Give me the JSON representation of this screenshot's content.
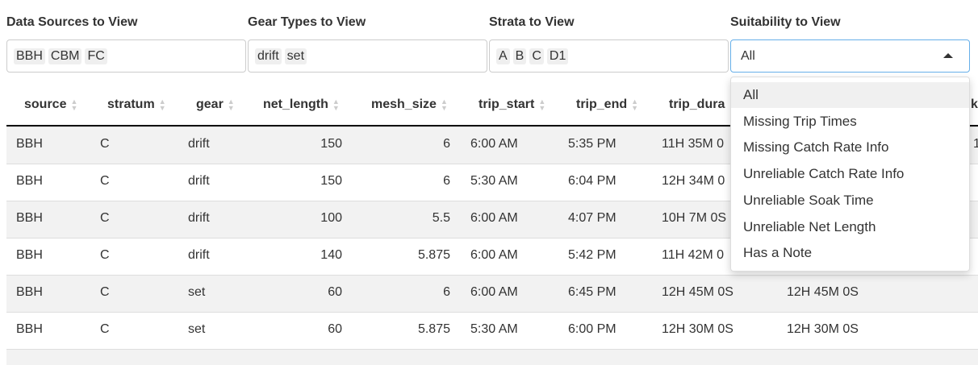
{
  "filters": [
    {
      "label": "Data Sources to View",
      "chips": [
        "BBH",
        "CBM",
        "FC"
      ]
    },
    {
      "label": "Gear Types to View",
      "chips": [
        "drift",
        "set"
      ]
    },
    {
      "label": "Strata to View",
      "chips": [
        "A",
        "B",
        "C",
        "D1"
      ]
    },
    {
      "label": "Suitability to View",
      "selected": "All",
      "options": [
        "All",
        "Missing Trip Times",
        "Missing Catch Rate Info",
        "Unreliable Catch Rate Info",
        "Unreliable Soak Time",
        "Unreliable Net Length",
        "Has a Note"
      ]
    }
  ],
  "table": {
    "columns": [
      "source",
      "stratum",
      "gear",
      "net_length",
      "mesh_size",
      "trip_start",
      "trip_end",
      "trip_dura",
      null,
      "k"
    ],
    "rows": [
      [
        "BBH",
        "C",
        "drift",
        "150",
        "6",
        "6:00 AM",
        "5:35 PM",
        "11H 35M 0",
        null,
        "1"
      ],
      [
        "BBH",
        "C",
        "drift",
        "150",
        "6",
        "5:30 AM",
        "6:04 PM",
        "12H 34M 0",
        null,
        null
      ],
      [
        "BBH",
        "C",
        "drift",
        "100",
        "5.5",
        "6:00 AM",
        "4:07 PM",
        "10H 7M 0S",
        null,
        null
      ],
      [
        "BBH",
        "C",
        "drift",
        "140",
        "5.875",
        "6:00 AM",
        "5:42 PM",
        "11H 42M 0",
        null,
        null
      ],
      [
        "BBH",
        "C",
        "set",
        "60",
        "6",
        "6:00 AM",
        "6:45 PM",
        "12H 45M 0S",
        "12H 45M 0S",
        null
      ],
      [
        "BBH",
        "C",
        "set",
        "60",
        "5.875",
        "5:30 AM",
        "6:00 PM",
        "12H 30M 0S",
        "12H 30M 0S",
        null
      ]
    ]
  }
}
